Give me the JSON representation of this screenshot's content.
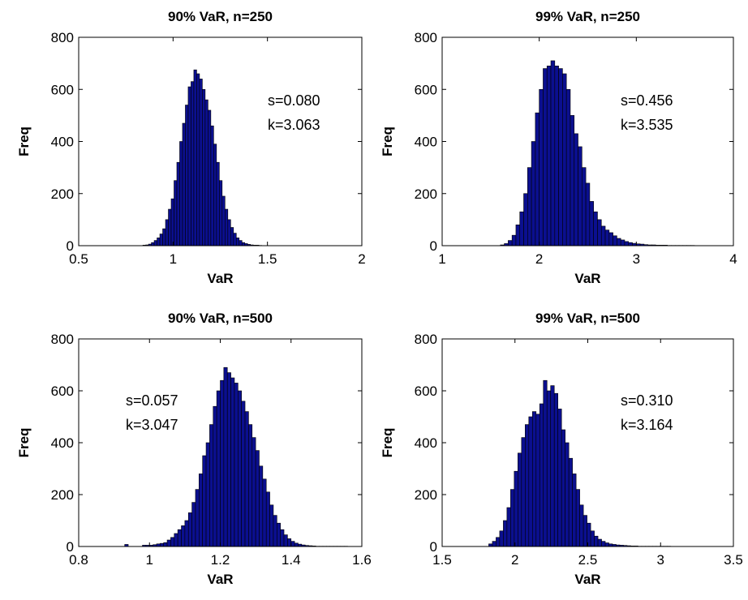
{
  "colors": {
    "bar_fill": "#0b0f8f",
    "bar_edge": "#000000",
    "axes": "#000000"
  },
  "chart_data": [
    {
      "type": "bar",
      "title": "90% VaR, n=250",
      "xlabel": "VaR",
      "ylabel": "Freq",
      "xlim": [
        0.5,
        2
      ],
      "ylim": [
        0,
        800
      ],
      "xticks": [
        0.5,
        1,
        1.5,
        2
      ],
      "xtick_labels": [
        "0.5",
        "1",
        "1.5",
        "2"
      ],
      "yticks": [
        0,
        200,
        400,
        600,
        800
      ],
      "ytick_labels": [
        "0",
        "200",
        "400",
        "600",
        "800"
      ],
      "grid": false,
      "annotations": [
        "s=0.080",
        "k=3.063"
      ],
      "bin_start": 0.84,
      "bin_width": 0.015,
      "values": [
        2,
        3,
        6,
        12,
        20,
        30,
        45,
        65,
        100,
        140,
        180,
        250,
        320,
        400,
        470,
        540,
        610,
        630,
        675,
        660,
        640,
        600,
        560,
        520,
        460,
        390,
        320,
        250,
        190,
        140,
        100,
        70,
        48,
        30,
        20,
        12,
        8,
        5,
        3,
        2,
        2,
        1
      ]
    },
    {
      "type": "bar",
      "title": "99% VaR, n=250",
      "xlabel": "VaR",
      "ylabel": "Freq",
      "xlim": [
        1,
        4
      ],
      "ylim": [
        0,
        800
      ],
      "xticks": [
        1,
        2,
        3,
        4
      ],
      "xtick_labels": [
        "1",
        "2",
        "3",
        "4"
      ],
      "yticks": [
        0,
        200,
        400,
        600,
        800
      ],
      "ytick_labels": [
        "0",
        "200",
        "400",
        "600",
        "800"
      ],
      "grid": false,
      "annotations": [
        "s=0.456",
        "k=3.535"
      ],
      "bin_start": 1.6,
      "bin_width": 0.04,
      "values": [
        3,
        8,
        20,
        40,
        80,
        130,
        200,
        300,
        400,
        510,
        600,
        680,
        690,
        710,
        690,
        680,
        660,
        600,
        500,
        430,
        380,
        300,
        240,
        170,
        130,
        100,
        75,
        60,
        50,
        38,
        28,
        22,
        16,
        12,
        9,
        7,
        6,
        4,
        3,
        3,
        2,
        2,
        2,
        1,
        1,
        1,
        1,
        1,
        1,
        1
      ]
    },
    {
      "type": "bar",
      "title": "90% VaR, n=500",
      "xlabel": "VaR",
      "ylabel": "Freq",
      "xlim": [
        0.8,
        1.6
      ],
      "ylim": [
        0,
        800
      ],
      "xticks": [
        0.8,
        1,
        1.2,
        1.4,
        1.6
      ],
      "xtick_labels": [
        "0.8",
        "1",
        "1.2",
        "1.4",
        "1.6"
      ],
      "yticks": [
        0,
        200,
        400,
        600,
        800
      ],
      "ytick_labels": [
        "0",
        "200",
        "400",
        "600",
        "800"
      ],
      "grid": false,
      "annotations": [
        "s=0.057",
        "k=3.047"
      ],
      "bin_start": 0.93,
      "bin_width": 0.01,
      "values": [
        8,
        0,
        0,
        0,
        0,
        5,
        5,
        5,
        7,
        10,
        12,
        15,
        25,
        35,
        50,
        65,
        80,
        100,
        130,
        170,
        220,
        280,
        350,
        400,
        470,
        540,
        600,
        640,
        690,
        670,
        650,
        630,
        600,
        560,
        520,
        470,
        420,
        370,
        310,
        260,
        210,
        160,
        120,
        90,
        65,
        45,
        30,
        20,
        13,
        9,
        6,
        4,
        3,
        2,
        1,
        1,
        1,
        1,
        1,
        1,
        1,
        1,
        1
      ]
    },
    {
      "type": "bar",
      "title": "99% VaR, n=500",
      "xlabel": "VaR",
      "ylabel": "Freq",
      "xlim": [
        1.5,
        3.5
      ],
      "ylim": [
        0,
        800
      ],
      "xticks": [
        1.5,
        2,
        2.5,
        3,
        3.5
      ],
      "xtick_labels": [
        "1.5",
        "2",
        "2.5",
        "3",
        "3.5"
      ],
      "yticks": [
        0,
        200,
        400,
        600,
        800
      ],
      "ytick_labels": [
        "0",
        "200",
        "400",
        "600",
        "800"
      ],
      "grid": false,
      "annotations": [
        "s=0.310",
        "k=3.164"
      ],
      "bin_start": 1.82,
      "bin_width": 0.025,
      "values": [
        10,
        20,
        35,
        60,
        100,
        150,
        220,
        290,
        360,
        420,
        470,
        500,
        520,
        510,
        550,
        640,
        600,
        620,
        590,
        530,
        450,
        400,
        340,
        280,
        220,
        160,
        120,
        90,
        60,
        40,
        28,
        20,
        14,
        10,
        8,
        6,
        5,
        4,
        3,
        2,
        2,
        1,
        1,
        1,
        1,
        1,
        1,
        1,
        1,
        1
      ]
    }
  ]
}
